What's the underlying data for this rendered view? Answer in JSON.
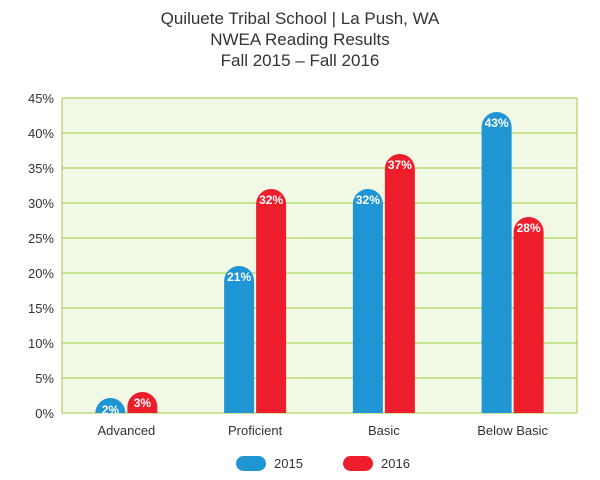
{
  "chart_data": {
    "type": "bar",
    "title_lines": [
      "Quiluete Tribal School  |  La Push, WA",
      "NWEA Reading Results",
      "Fall 2015 – Fall 2016"
    ],
    "categories": [
      "Advanced",
      "Proficient",
      "Basic",
      "Below Basic"
    ],
    "series": [
      {
        "name": "2015",
        "values": [
          2,
          21,
          32,
          43
        ],
        "labels": [
          "2%",
          "21%",
          "32%",
          "43%"
        ],
        "color": "#1f96d3"
      },
      {
        "name": "2016",
        "values": [
          3,
          32,
          37,
          28
        ],
        "labels": [
          "3%",
          "32%",
          "37%",
          "28%"
        ],
        "color": "#ee1d2b"
      }
    ],
    "ylim": [
      0,
      45
    ],
    "yticks": [
      0,
      5,
      10,
      15,
      20,
      25,
      30,
      35,
      40,
      45
    ],
    "ytick_labels": [
      "0%",
      "5%",
      "10%",
      "15%",
      "20%",
      "25%",
      "30%",
      "35%",
      "40%",
      "45%"
    ],
    "xlabel": "",
    "ylabel": "",
    "grid": true,
    "legend": "bottom-center",
    "colors": {
      "plot_background": "#f2f8e6",
      "gridline": "#9ccc3c"
    }
  }
}
